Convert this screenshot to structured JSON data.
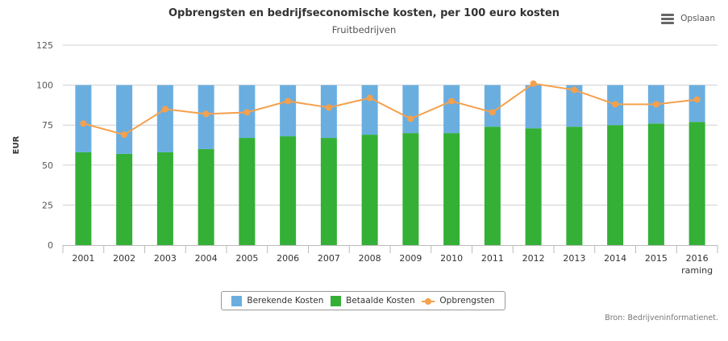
{
  "title": "Opbrengsten en bedrijfseconomische kosten, per 100 euro kosten",
  "subtitle": "Fruitbedrijven",
  "export_button": {
    "label": "Opslaan",
    "icon": "menu-icon"
  },
  "credits": "Bron: Bedrijveninformatienet.",
  "colors": {
    "berekende": "#6aaee0",
    "betaalde": "#33b035",
    "opbrengsten": "#f5a04c",
    "grid": "#d0d0d0",
    "axis": "#bbbbbb"
  },
  "chart_data": {
    "type": "bar",
    "stacked": true,
    "ylabel": "EUR",
    "ylim": [
      0,
      125
    ],
    "yticks": [
      0,
      25,
      50,
      75,
      100,
      125
    ],
    "grid": true,
    "legend_position": "bottom",
    "categories": [
      "2001",
      "2002",
      "2003",
      "2004",
      "2005",
      "2006",
      "2007",
      "2008",
      "2009",
      "2010",
      "2011",
      "2012",
      "2013",
      "2014",
      "2015",
      "2016"
    ],
    "category_sublabels": [
      "",
      "",
      "",
      "",
      "",
      "",
      "",
      "",
      "",
      "",
      "",
      "",
      "",
      "",
      "",
      "raming"
    ],
    "series": [
      {
        "name": "Berekende Kosten",
        "type": "bar",
        "values": [
          42,
          43,
          42,
          40,
          33,
          32,
          33,
          31,
          30,
          30,
          26,
          27,
          26,
          25,
          24,
          23
        ]
      },
      {
        "name": "Betaalde Kosten",
        "type": "bar",
        "values": [
          58,
          57,
          58,
          60,
          67,
          68,
          67,
          69,
          70,
          70,
          74,
          73,
          74,
          75,
          76,
          77
        ]
      },
      {
        "name": "Opbrengsten",
        "type": "line",
        "values": [
          76,
          69,
          85,
          82,
          83,
          90,
          86,
          92,
          79,
          90,
          83,
          101,
          97,
          88,
          88,
          91
        ]
      }
    ]
  }
}
